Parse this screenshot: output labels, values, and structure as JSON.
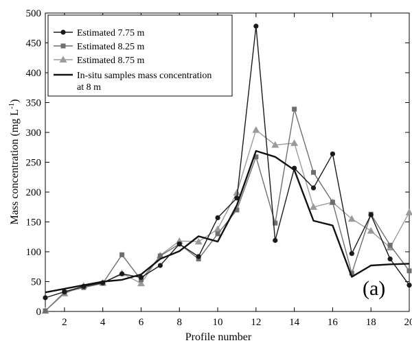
{
  "chart_data": {
    "type": "line",
    "xlabel": "Profile number",
    "ylabel": "Mass concentration (mg L",
    "ylabel_sup": "-1",
    "ylabel_close": ")",
    "xlim": [
      1,
      20
    ],
    "ylim": [
      0,
      500
    ],
    "xticks": [
      2,
      4,
      6,
      8,
      10,
      12,
      14,
      16,
      18,
      20
    ],
    "yticks": [
      0,
      50,
      100,
      150,
      200,
      250,
      300,
      350,
      400,
      450,
      500
    ],
    "grid": false,
    "legend_position": "top-left",
    "panel_label": "(a)",
    "x": [
      1,
      2,
      3,
      4,
      5,
      6,
      7,
      8,
      9,
      10,
      11,
      12,
      13,
      14,
      15,
      16,
      17,
      18,
      19,
      20
    ],
    "series": [
      {
        "name": "Estimated 7.75 m",
        "marker": "circle",
        "color": "#1a1a1a",
        "values": [
          23,
          33,
          42,
          48,
          63,
          57,
          77,
          113,
          92,
          157,
          190,
          478,
          119,
          240,
          207,
          264,
          97,
          162,
          88,
          44
        ]
      },
      {
        "name": "Estimated 8.25 m",
        "marker": "square",
        "color": "#6e6e6e",
        "values": [
          1,
          32,
          40,
          47,
          95,
          53,
          93,
          113,
          88,
          130,
          170,
          259,
          148,
          339,
          233,
          183,
          64,
          163,
          111,
          68
        ]
      },
      {
        "name": "Estimated 8.75 m",
        "marker": "triangle",
        "color": "#9a9a9a",
        "values": [
          1,
          30,
          43,
          48,
          64,
          47,
          94,
          118,
          117,
          138,
          199,
          304,
          279,
          282,
          175,
          183,
          155,
          135,
          107,
          166
        ]
      },
      {
        "name": "In-situ samples mass concentration",
        "name_line2": "at 8 m",
        "marker": "none",
        "color": "#111111",
        "values": [
          32,
          38,
          44,
          50,
          53,
          62,
          88,
          101,
          126,
          117,
          178,
          269,
          259,
          237,
          152,
          144,
          58,
          77,
          79,
          80
        ]
      }
    ]
  }
}
